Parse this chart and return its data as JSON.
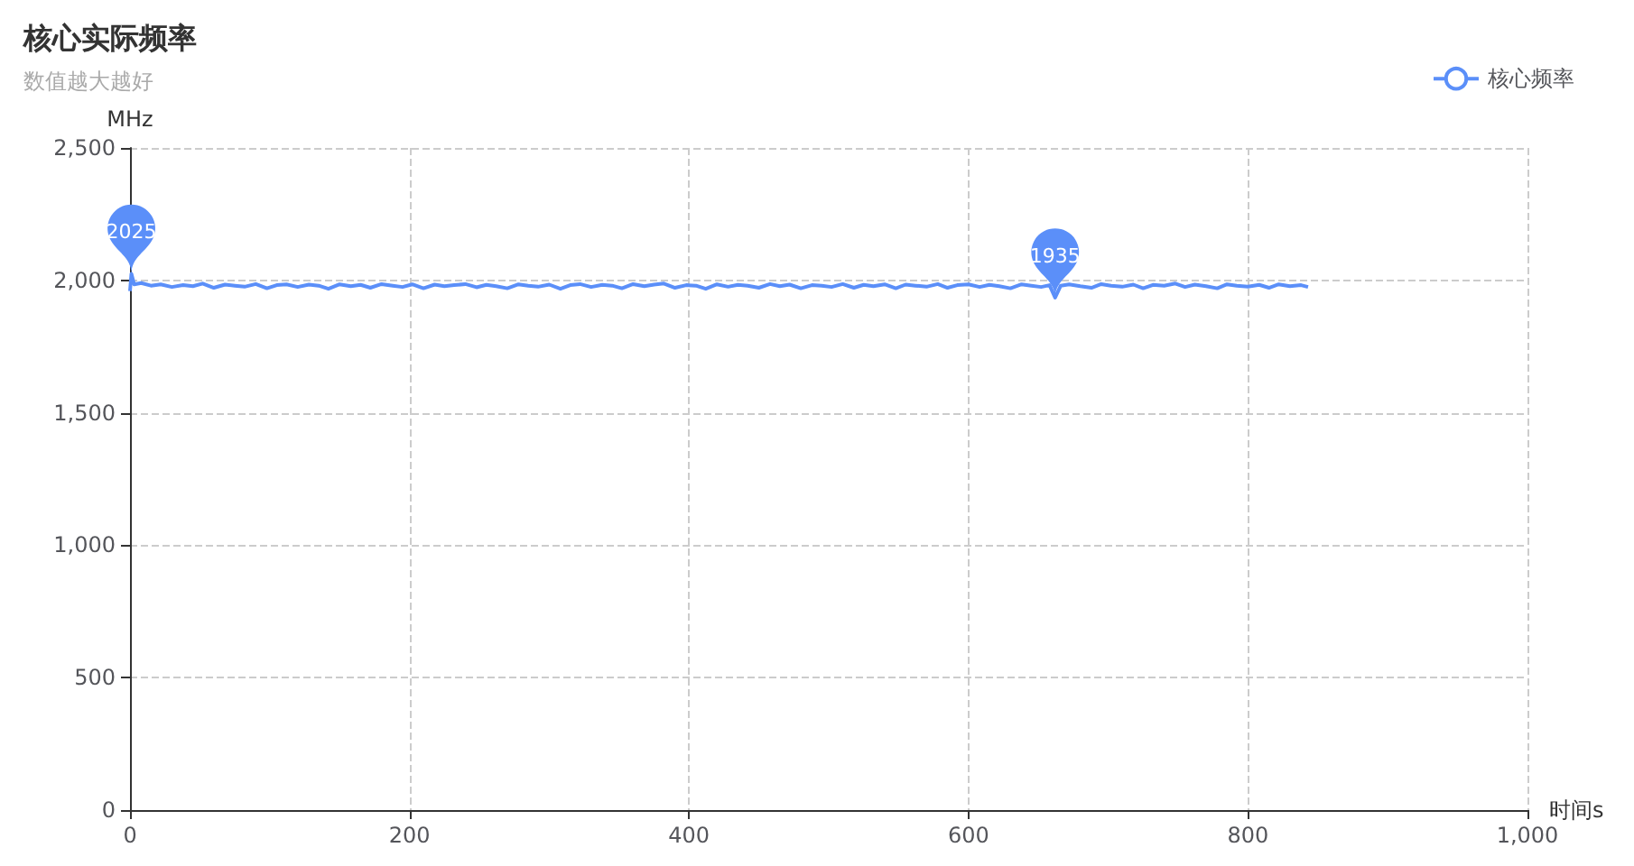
{
  "chart_data": {
    "type": "line",
    "title": "核心实际频率",
    "subtitle": "数值越大越好",
    "xlabel": "时间s",
    "ylabel": "MHz",
    "xlim": [
      0,
      1000
    ],
    "xticks": [
      0,
      200,
      400,
      600,
      800,
      {
        "value": 1000,
        "label": "1,000"
      }
    ],
    "ylim": [
      0,
      2500
    ],
    "yticks": [
      0,
      500,
      {
        "value": 1000,
        "label": "1,000"
      },
      {
        "value": 1500,
        "label": "1,500"
      },
      {
        "value": 2000,
        "label": "2,000"
      },
      {
        "value": 2500,
        "label": "2,500"
      }
    ],
    "grid": true,
    "legend": "top right",
    "marker": "none",
    "line_style": "solid",
    "annotations": [
      {
        "text": "2025",
        "x": 1,
        "y": 2025
      },
      {
        "text": "1935",
        "x": 662,
        "y": 1935
      }
    ],
    "series": [
      {
        "name": "核心频率",
        "color": "#5b8ff9",
        "x": [
          0,
          1,
          3,
          8,
          15,
          22,
          30,
          38,
          45,
          52,
          60,
          68,
          75,
          82,
          90,
          98,
          105,
          112,
          120,
          128,
          135,
          142,
          150,
          158,
          165,
          172,
          180,
          188,
          195,
          202,
          210,
          218,
          225,
          232,
          240,
          248,
          255,
          262,
          270,
          278,
          285,
          292,
          300,
          308,
          315,
          322,
          330,
          338,
          345,
          352,
          360,
          368,
          375,
          382,
          390,
          398,
          405,
          412,
          420,
          428,
          435,
          442,
          450,
          458,
          465,
          472,
          480,
          488,
          495,
          502,
          510,
          518,
          525,
          532,
          540,
          548,
          555,
          562,
          570,
          578,
          585,
          592,
          600,
          608,
          615,
          622,
          630,
          638,
          645,
          652,
          658,
          662,
          666,
          672,
          680,
          688,
          695,
          702,
          710,
          718,
          725,
          732,
          740,
          748,
          755,
          762,
          770,
          778,
          785,
          792,
          800,
          808,
          815,
          822,
          830,
          838,
          843
        ],
        "values": [
          1960,
          2025,
          1985,
          1990,
          1980,
          1985,
          1975,
          1982,
          1978,
          1988,
          1972,
          1984,
          1980,
          1976,
          1986,
          1970,
          1982,
          1985,
          1975,
          1984,
          1980,
          1968,
          1985,
          1978,
          1983,
          1972,
          1986,
          1980,
          1975,
          1985,
          1970,
          1984,
          1978,
          1982,
          1986,
          1974,
          1983,
          1978,
          1970,
          1985,
          1980,
          1976,
          1984,
          1968,
          1982,
          1986,
          1975,
          1983,
          1980,
          1970,
          1986,
          1978,
          1984,
          1988,
          1972,
          1982,
          1980,
          1968,
          1985,
          1976,
          1983,
          1980,
          1972,
          1986,
          1978,
          1984,
          1970,
          1982,
          1980,
          1975,
          1986,
          1972,
          1983,
          1978,
          1985,
          1970,
          1984,
          1980,
          1976,
          1986,
          1972,
          1982,
          1985,
          1975,
          1983,
          1978,
          1970,
          1985,
          1980,
          1975,
          1982,
          1935,
          1980,
          1985,
          1978,
          1972,
          1986,
          1980,
          1976,
          1984,
          1970,
          1983,
          1980,
          1988,
          1975,
          1984,
          1978,
          1970,
          1985,
          1980,
          1976,
          1983,
          1972,
          1985,
          1978,
          1982,
          1975
        ]
      }
    ]
  }
}
